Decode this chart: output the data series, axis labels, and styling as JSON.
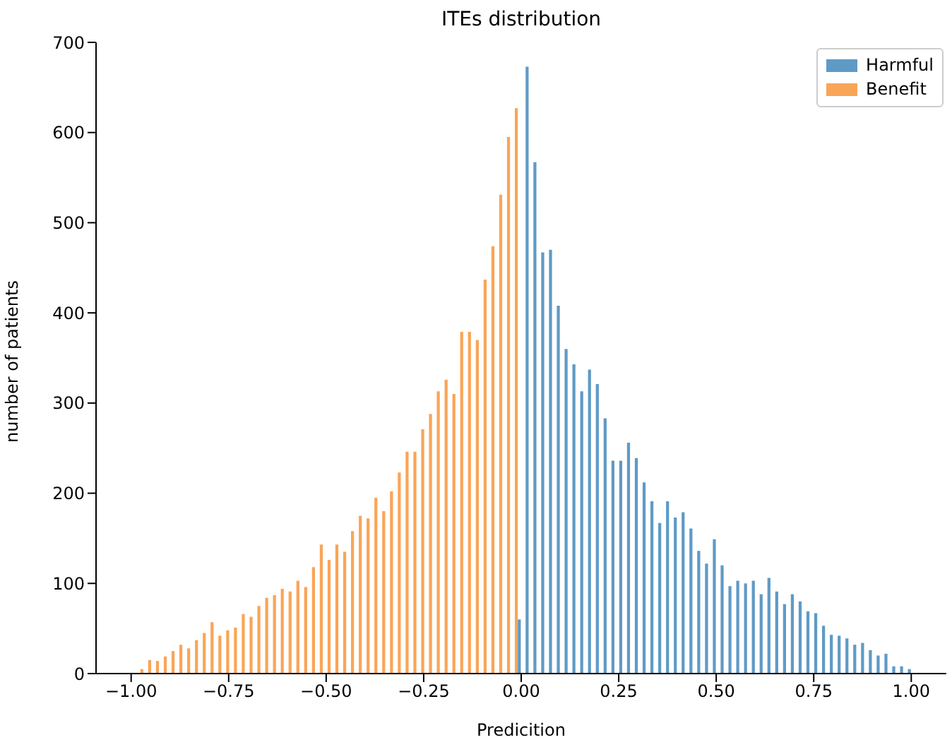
{
  "chart_data": {
    "type": "histogram",
    "title": "ITEs distribution",
    "xlabel": "Predicition",
    "ylabel": "number of patients",
    "bins": [
      -1,
      -0.98,
      -0.96,
      -0.94,
      -0.92,
      -0.9,
      -0.88,
      -0.86,
      -0.84,
      -0.82,
      -0.8,
      -0.78,
      -0.76,
      -0.74,
      -0.72,
      -0.7,
      -0.68,
      -0.66,
      -0.64,
      -0.62,
      -0.6,
      -0.58,
      -0.56,
      -0.54,
      -0.52,
      -0.5,
      -0.48,
      -0.46,
      -0.44,
      -0.42,
      -0.4,
      -0.38,
      -0.36,
      -0.34,
      -0.32,
      -0.3,
      -0.28,
      -0.26,
      -0.24,
      -0.22,
      -0.2,
      -0.18,
      -0.16,
      -0.14,
      -0.12,
      -0.1,
      -0.08,
      -0.06,
      -0.04,
      -0.02,
      0,
      0.02,
      0.04,
      0.06,
      0.08,
      0.1,
      0.12,
      0.14,
      0.16,
      0.18,
      0.2,
      0.22,
      0.24,
      0.26,
      0.28,
      0.3,
      0.32,
      0.34,
      0.36,
      0.38,
      0.4,
      0.42,
      0.44,
      0.46,
      0.48,
      0.5,
      0.52,
      0.54,
      0.56,
      0.58,
      0.6,
      0.62,
      0.64,
      0.66,
      0.68,
      0.7,
      0.72,
      0.74,
      0.76,
      0.78,
      0.8,
      0.82,
      0.84,
      0.86,
      0.88,
      0.9,
      0.92,
      0.94,
      0.96,
      0.98,
      1
    ],
    "series": [
      {
        "name": "Harmful",
        "color": "#5f9ac6",
        "values": [
          0,
          0,
          0,
          0,
          0,
          0,
          0,
          0,
          0,
          0,
          0,
          0,
          0,
          0,
          0,
          0,
          0,
          0,
          0,
          0,
          0,
          0,
          0,
          0,
          0,
          0,
          0,
          0,
          0,
          0,
          0,
          0,
          0,
          0,
          0,
          0,
          0,
          0,
          0,
          0,
          0,
          0,
          0,
          0,
          0,
          0,
          0,
          0,
          0,
          60,
          673,
          567,
          467,
          470,
          408,
          360,
          343,
          313,
          337,
          321,
          283,
          236,
          236,
          256,
          239,
          212,
          191,
          167,
          191,
          173,
          179,
          161,
          136,
          122,
          149,
          120,
          97,
          103,
          100,
          103,
          88,
          106,
          91,
          77,
          88,
          80,
          69,
          67,
          53,
          43,
          42,
          39,
          32,
          34,
          26,
          20,
          22,
          8,
          8,
          5
        ]
      },
      {
        "name": "Benefit",
        "color": "#f9a557",
        "values": [
          0,
          5,
          15,
          14,
          19,
          25,
          32,
          28,
          37,
          45,
          57,
          42,
          48,
          51,
          66,
          63,
          75,
          84,
          87,
          94,
          91,
          103,
          96,
          118,
          143,
          126,
          143,
          135,
          158,
          175,
          172,
          195,
          180,
          202,
          223,
          246,
          246,
          271,
          288,
          313,
          326,
          310,
          379,
          379,
          370,
          437,
          474,
          531,
          595,
          627,
          0,
          0,
          0,
          0,
          0,
          0,
          0,
          0,
          0,
          0,
          0,
          0,
          0,
          0,
          0,
          0,
          0,
          0,
          0,
          0,
          0,
          0,
          0,
          0,
          0,
          0,
          0,
          0,
          0,
          0,
          0,
          0,
          0,
          0,
          0,
          0,
          0,
          0,
          0,
          0,
          0,
          0,
          0,
          0,
          0,
          0,
          0,
          0,
          0,
          0
        ]
      }
    ],
    "xlim": [
      -1.09,
      1.09
    ],
    "xticks": [
      {
        "value": -1,
        "label": "−1.00"
      },
      {
        "value": -0.75,
        "label": "−0.75"
      },
      {
        "value": -0.5,
        "label": "−0.50"
      },
      {
        "value": -0.25,
        "label": "−0.25"
      },
      {
        "value": 0,
        "label": "0.00"
      },
      {
        "value": 0.25,
        "label": "0.25"
      },
      {
        "value": 0.5,
        "label": "0.50"
      },
      {
        "value": 0.75,
        "label": "0.75"
      },
      {
        "value": 1,
        "label": "1.00"
      }
    ],
    "ylim": [
      0,
      700
    ],
    "yticks": [
      0,
      100,
      200,
      300,
      400,
      500,
      600,
      700
    ],
    "grid": false,
    "legend": "top right"
  }
}
